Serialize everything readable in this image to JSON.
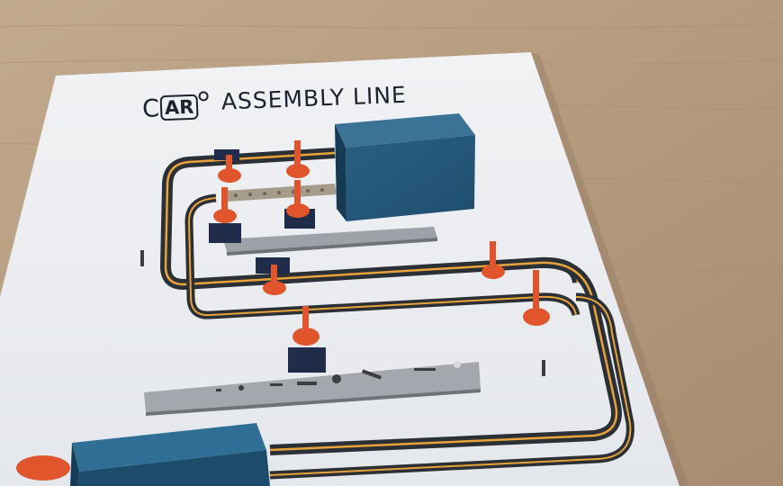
{
  "title": {
    "logo_c": "C",
    "logo_ar": "AR",
    "heading": "ASSEMBLY LINE"
  },
  "scene": {
    "subject": "augmented reality car assembly line model on a printed sheet",
    "surface": "wooden table",
    "colors": {
      "wood": "#b89e82",
      "paper": "#eef0f3",
      "factory_block": "#1e4d6b",
      "robot": "#e0552c",
      "conveyor_belt": "#2b2f36",
      "conveyor_rail": "#e8a23a"
    },
    "robot_count": 8
  }
}
